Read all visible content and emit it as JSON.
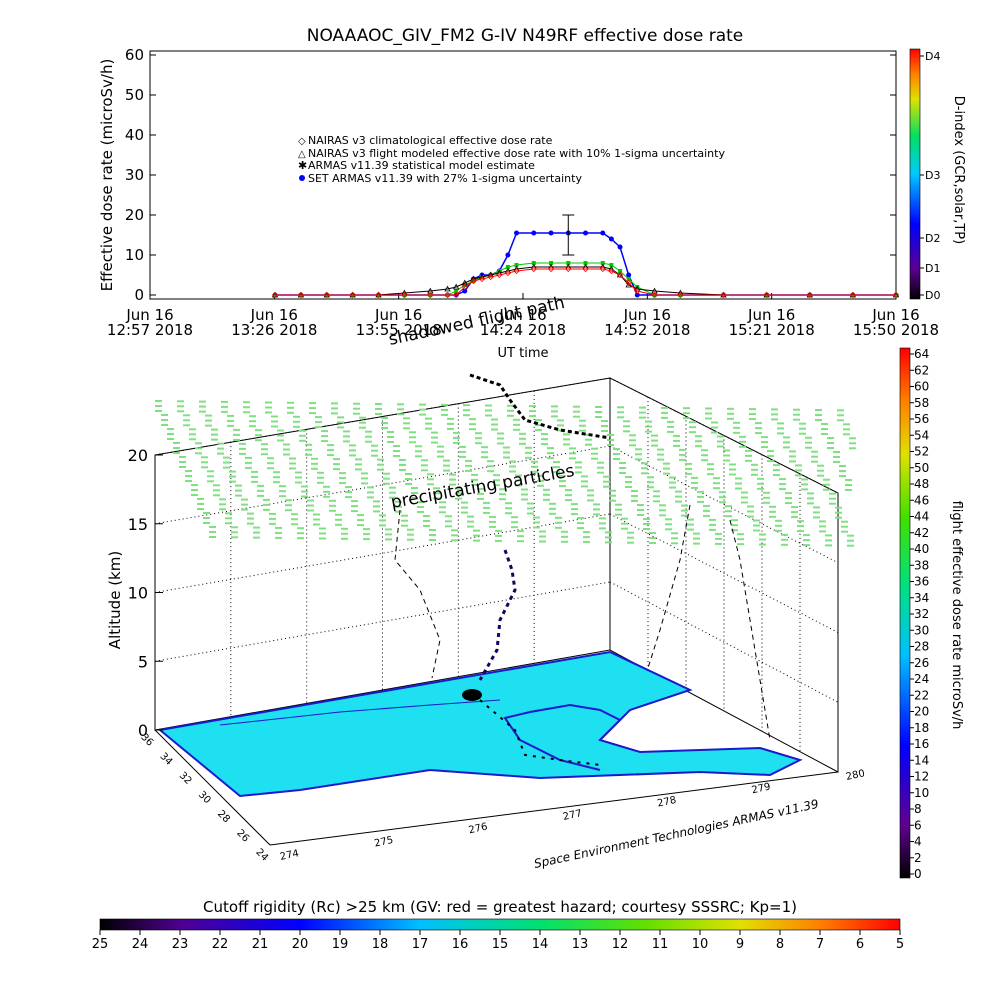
{
  "chart_data": [
    {
      "type": "line",
      "title": "NOAAAOC_GIV_FM2  G-IV    N49RF   effective dose rate",
      "xlabel": "UT time",
      "ylabel": "Effective dose rate (microSv/h)",
      "ylim": [
        0,
        60
      ],
      "yticks": [
        "0",
        "10",
        "20",
        "30",
        "40",
        "50",
        "60"
      ],
      "xlim": [
        "2018-06-16T12:57",
        "2018-06-16T15:50"
      ],
      "xtick_dates": [
        "Jun 16",
        "Jun 16",
        "Jun 16",
        "Jun 16",
        "Jun 16",
        "Jun 16",
        "Jun 16"
      ],
      "xtick_times": [
        "12:57 2018",
        "13:26 2018",
        "13:55 2018",
        "14:24 2018",
        "14:52 2018",
        "15:21 2018",
        "15:50 2018"
      ],
      "legend_position": "top-left",
      "legend": [
        "NAIRAS v3 climatological effective dose rate",
        "NAIRAS v3 flight modeled effective dose rate with 10% 1-sigma uncertainty",
        "ARMAS v11.39 statistical model estimate",
        "SET ARMAS v11.39 with 27% 1-sigma uncertainty"
      ],
      "x": [
        "13:26",
        "13:32",
        "13:38",
        "13:44",
        "13:50",
        "13:56",
        "14:02",
        "14:06",
        "14:08",
        "14:10",
        "14:12",
        "14:14",
        "14:16",
        "14:18",
        "14:20",
        "14:22",
        "14:26",
        "14:30",
        "14:34",
        "14:38",
        "14:42",
        "14:44",
        "14:46",
        "14:48",
        "14:50",
        "14:54",
        "15:00",
        "15:10",
        "15:20",
        "15:30",
        "15:40",
        "15:50"
      ],
      "series": [
        {
          "name": "SET ARMAS v11.39 with 27% 1-sigma uncertainty",
          "color": "#0000ff",
          "values": [
            0,
            0,
            0,
            0,
            0,
            0,
            0,
            0,
            0,
            1,
            4,
            5,
            5,
            6,
            10,
            15.5,
            15.5,
            15.5,
            15.5,
            15.5,
            15.5,
            14,
            12,
            5,
            0,
            0,
            0,
            0,
            0,
            0,
            0,
            0
          ]
        },
        {
          "name": "ARMAS v11.39 statistical model estimate",
          "color": "#00c800",
          "values": [
            0,
            0,
            0,
            0,
            0,
            0,
            0,
            0,
            1,
            2.5,
            3.5,
            4.5,
            5,
            6,
            7,
            7.5,
            8,
            8,
            8,
            8,
            8,
            7.5,
            6,
            4,
            2,
            0,
            0,
            0,
            0,
            0,
            0,
            0
          ]
        },
        {
          "name": "NAIRAS v3 flight modeled effective dose rate with 10% 1-sigma uncertainty",
          "color": "#000000",
          "values": [
            0,
            0,
            0,
            0,
            0,
            0.5,
            1,
            1.5,
            2,
            3,
            4,
            4.5,
            5,
            5.5,
            6,
            6.5,
            7,
            7,
            7,
            7,
            7,
            6.5,
            5,
            2.5,
            1.5,
            1,
            0.5,
            0,
            0,
            0,
            0,
            0
          ]
        },
        {
          "name": "NAIRAS v3 climatological effective dose rate",
          "color": "#ff0000",
          "values": [
            0,
            0,
            0,
            0,
            0,
            0,
            0,
            0,
            0,
            2,
            3.5,
            4,
            4.5,
            5,
            5.5,
            6,
            6.5,
            6.5,
            6.5,
            6.5,
            6.5,
            6,
            5,
            3,
            1,
            0,
            0,
            0,
            0,
            0,
            0,
            0
          ]
        }
      ],
      "error_bar": {
        "x": "14:34",
        "low": 10,
        "high": 20
      },
      "right_colorbar": {
        "label": "D-index (GCR,solar,TP)",
        "ticks": [
          "D4",
          "D3",
          "D2",
          "D1",
          "D0"
        ]
      }
    },
    {
      "type": "3d-trajectory",
      "zlabel": "Altitude (km)",
      "zticks": [
        "0",
        "5",
        "10",
        "15",
        "20"
      ],
      "lat_ticks": [
        "36",
        "34",
        "32",
        "30",
        "28",
        "26",
        "24"
      ],
      "lon_ticks": [
        "274",
        "275",
        "276",
        "277",
        "278",
        "279",
        "280"
      ],
      "annotations": [
        "shadowed flight path",
        "precipitating particles"
      ],
      "credit": "Space Environment Technologies ARMAS v11.39",
      "right_colorbar": {
        "label": "flight effective dose rate microSv/h",
        "ticks": [
          "64",
          "62",
          "60",
          "58",
          "56",
          "54",
          "52",
          "50",
          "48",
          "46",
          "44",
          "42",
          "40",
          "38",
          "36",
          "34",
          "32",
          "30",
          "28",
          "26",
          "24",
          "22",
          "20",
          "18",
          "16",
          "14",
          "12",
          "10",
          "8",
          "6",
          "4",
          "2",
          "0"
        ]
      },
      "bottom_colorbar": {
        "label": "Cutoff rigidity (Rc) >25 km (GV: red = greatest hazard; courtesy SSSRC; Kp=1)",
        "ticks": [
          "25",
          "24",
          "23",
          "22",
          "21",
          "20",
          "19",
          "18",
          "17",
          "16",
          "15",
          "14",
          "13",
          "12",
          "11",
          "10",
          "9",
          "8",
          "7",
          "6",
          "5"
        ]
      }
    }
  ],
  "colors": {
    "map_fill": "#1ee0f0",
    "coast": "#1a1acc",
    "particles": "#7fe07f",
    "high_alt_dose": "#ffffff"
  }
}
